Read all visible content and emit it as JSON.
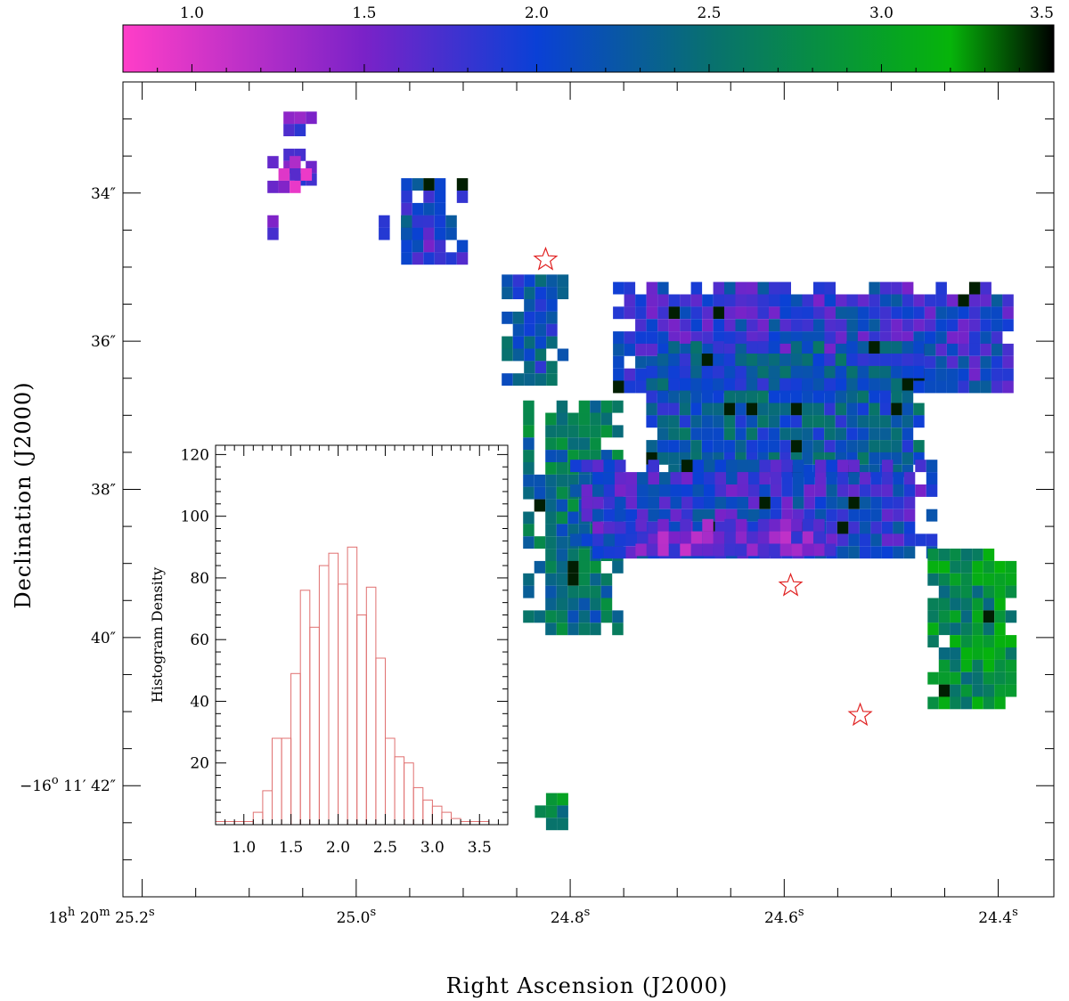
{
  "chart_data": [
    {
      "type": "heatmap",
      "xlabel": "Right Ascension (J2000)",
      "ylabel": "Declination (J2000)",
      "x_ticks": [
        {
          "value": 25.2,
          "labels": [
            "18",
            "h",
            " 20",
            "m",
            " 25.2",
            "s"
          ]
        },
        {
          "value": 25.0,
          "labels": [
            "25.0",
            "s"
          ]
        },
        {
          "value": 24.8,
          "labels": [
            "24.8",
            "s"
          ]
        },
        {
          "value": 24.6,
          "labels": [
            "24.6",
            "s"
          ]
        },
        {
          "value": 24.4,
          "labels": [
            "24.4",
            "s"
          ]
        }
      ],
      "y_ticks": [
        {
          "value": 34,
          "label": "34″"
        },
        {
          "value": 36,
          "label": "36″"
        },
        {
          "value": 38,
          "label": "38″"
        },
        {
          "value": 40,
          "label": "40″"
        },
        {
          "value": 42,
          "label": "−16° 11′ 42″",
          "parts": [
            "−16",
            "o",
            " 11′ 42″"
          ]
        }
      ],
      "xlim": [
        25.218,
        24.348
      ],
      "ylim": [
        43.5,
        32.5
      ],
      "colorbar": {
        "ticks": [
          "1.0",
          "1.5",
          "2.0",
          "2.5",
          "3.0",
          "3.5"
        ],
        "range": [
          0.8,
          3.5
        ],
        "stops": [
          {
            "v": 0.8,
            "color": "#ff3ec8"
          },
          {
            "v": 1.5,
            "color": "#7a22c8"
          },
          {
            "v": 2.0,
            "color": "#0a40d6"
          },
          {
            "v": 2.5,
            "color": "#087070"
          },
          {
            "v": 3.2,
            "color": "#06b40a"
          },
          {
            "v": 3.5,
            "color": "#000000"
          }
        ]
      },
      "stars": [
        {
          "ra": 24.823,
          "dec": 34.9
        },
        {
          "ra": 24.594,
          "dec": 39.3
        },
        {
          "ra": 24.529,
          "dec": 41.05
        }
      ],
      "star_color": "#e02020",
      "pixel_scale": {
        "ra_step": 0.0104,
        "dec_step": 0.1667
      },
      "regions": [
        {
          "ra": [
            25.068,
            25.042
          ],
          "dec": [
            32.9,
            33.8
          ],
          "v_base": 1.55
        },
        {
          "ra": [
            25.083,
            25.042
          ],
          "dec": [
            33.5,
            34.0
          ],
          "v_base": 1.3
        },
        {
          "ra": [
            25.083,
            25.073
          ],
          "dec": [
            34.3,
            34.6
          ],
          "v_base": 1.7
        },
        {
          "ra": [
            24.958,
            24.906
          ],
          "dec": [
            33.8,
            34.9
          ],
          "v_base": 1.9
        },
        {
          "ra": [
            24.979,
            24.937
          ],
          "dec": [
            34.3,
            34.6
          ],
          "v_base": 2.0
        },
        {
          "ra": [
            24.864,
            24.812
          ],
          "dec": [
            35.1,
            36.5
          ],
          "v_base": 2.2
        },
        {
          "ra": [
            24.844,
            24.76
          ],
          "dec": [
            36.8,
            39.9
          ],
          "v_base": 2.5
        },
        {
          "ra": [
            24.76,
            24.386
          ],
          "dec": [
            35.2,
            36.6
          ],
          "v_base": 1.9
        },
        {
          "ra": [
            24.729,
            24.47
          ],
          "dec": [
            36.0,
            37.7
          ],
          "v_base": 2.2
        },
        {
          "ra": [
            24.8,
            24.466
          ],
          "dec": [
            37.6,
            38.8
          ],
          "v_base": 1.9
        },
        {
          "ra": [
            24.739,
            24.56
          ],
          "dec": [
            38.4,
            38.9
          ],
          "v_base": 1.45
        },
        {
          "ra": [
            24.466,
            24.386
          ],
          "dec": [
            38.8,
            40.9
          ],
          "v_base": 2.8
        },
        {
          "ra": [
            24.833,
            24.802
          ],
          "dec": [
            42.1,
            42.6
          ],
          "v_base": 2.8
        }
      ]
    },
    {
      "type": "bar",
      "ylabel": "Histogram Density",
      "x_ticks": [
        "1.0",
        "1.5",
        "2.0",
        "2.5",
        "3.0",
        "3.5"
      ],
      "y_ticks": [
        "20",
        "40",
        "60",
        "80",
        "100",
        "120"
      ],
      "xlim": [
        0.7,
        3.8
      ],
      "ylim": [
        0,
        123
      ],
      "bin_width": 0.1,
      "bin_edges_start": 0.7,
      "values": [
        1,
        1,
        1,
        1,
        4,
        11,
        28,
        28,
        49,
        76,
        64,
        84,
        88,
        78,
        90,
        68,
        77,
        54,
        28,
        22,
        20,
        12,
        8,
        6,
        4,
        2,
        1,
        1,
        1
      ],
      "bar_color": "#e07070"
    }
  ]
}
